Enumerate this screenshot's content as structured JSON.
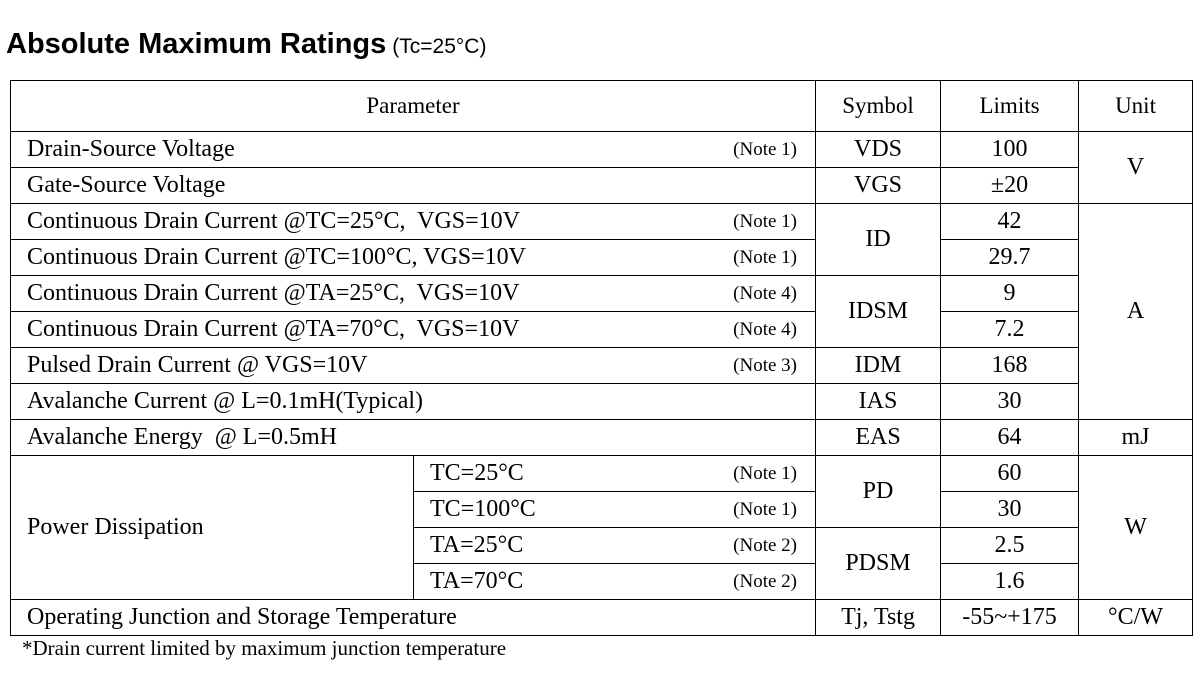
{
  "header": {
    "title": "Absolute Maximum Ratings",
    "condition": "(Tc=25°C)"
  },
  "table": {
    "columns": [
      "Parameter",
      "Symbol",
      "Limits",
      "Unit"
    ],
    "rows": [
      {
        "parameter": "Drain-Source Voltage",
        "note": "(Note 1)",
        "symbol": "VDS",
        "limit": 100,
        "unit": "V"
      },
      {
        "parameter": "Gate-Source Voltage",
        "symbol": "VGS",
        "limit": "±20"
      },
      {
        "parameter": "Continuous Drain Current @TC=25°C,  VGS=10V",
        "note": "(Note 1)",
        "symbol": "ID",
        "limit": 42,
        "unit": "A"
      },
      {
        "parameter": "Continuous Drain Current @TC=100°C, VGS=10V",
        "note": "(Note 1)",
        "limit": 29.7
      },
      {
        "parameter": "Continuous Drain Current @TA=25°C,  VGS=10V",
        "note": "(Note 4)",
        "symbol": "IDSM",
        "limit": 9
      },
      {
        "parameter": "Continuous Drain Current @TA=70°C,  VGS=10V",
        "note": "(Note 4)",
        "limit": 7.2
      },
      {
        "parameter": "Pulsed Drain Current @ VGS=10V",
        "note": "(Note 3)",
        "symbol": "IDM",
        "limit": 168
      },
      {
        "parameter": "Avalanche Current @ L=0.1mH(Typical)",
        "symbol": "IAS",
        "limit": 30
      },
      {
        "parameter": "Avalanche Energy  @ L=0.5mH",
        "symbol": "EAS",
        "limit": 64,
        "unit": "mJ"
      },
      {
        "parameter": "Power Dissipation",
        "condition": "TC=25°C",
        "note": "(Note 1)",
        "symbol": "PD",
        "limit": 60,
        "unit": "W"
      },
      {
        "condition": "TC=100°C",
        "note": "(Note 1)",
        "limit": 30
      },
      {
        "condition": "TA=25°C",
        "note": "(Note 2)",
        "symbol": "PDSM",
        "limit": 2.5
      },
      {
        "condition": "TA=70°C",
        "note": "(Note 2)",
        "limit": 1.6
      },
      {
        "parameter": "Operating Junction and Storage Temperature",
        "symbol": "Tj, Tstg",
        "limit": "-55~+175",
        "unit": "°C/W"
      }
    ]
  },
  "footnote": "*Drain current limited by maximum junction temperature"
}
